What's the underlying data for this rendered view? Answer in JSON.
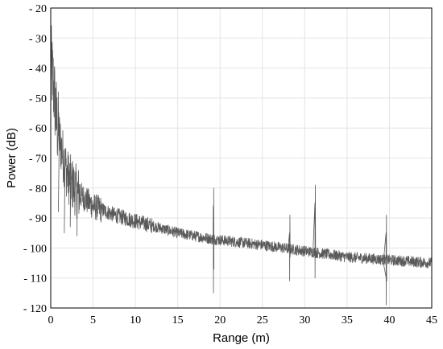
{
  "chart_data": {
    "type": "line",
    "xlabel": "Range (m)",
    "ylabel": "Power (dB)",
    "xlim": [
      0,
      45
    ],
    "ylim": [
      -120,
      -20
    ],
    "y_inverted_top_is": -20,
    "xticks": [
      0,
      5,
      10,
      15,
      20,
      25,
      30,
      35,
      40,
      45
    ],
    "yticks": [
      -20,
      -30,
      -40,
      -50,
      -60,
      -70,
      -80,
      -90,
      -100,
      -110,
      -120
    ],
    "xtick_labels": [
      "0",
      "5",
      "10",
      "15",
      "20",
      "25",
      "30",
      "35",
      "40",
      "45"
    ],
    "ytick_labels": [
      "- 20",
      "- 30",
      "- 40",
      "- 50",
      "- 60",
      "- 70",
      "- 80",
      "- 90",
      "- 100",
      "- 110",
      "- 120"
    ],
    "grid": true,
    "series_color": "#5a5a5a",
    "baseline": [
      {
        "x": 0.0,
        "y": -38
      },
      {
        "x": 0.3,
        "y": -45
      },
      {
        "x": 0.7,
        "y": -58
      },
      {
        "x": 1.2,
        "y": -66
      },
      {
        "x": 2.0,
        "y": -76
      },
      {
        "x": 3.0,
        "y": -81
      },
      {
        "x": 5.0,
        "y": -86
      },
      {
        "x": 7.5,
        "y": -89
      },
      {
        "x": 10.0,
        "y": -91
      },
      {
        "x": 15.0,
        "y": -95
      },
      {
        "x": 19.0,
        "y": -97
      },
      {
        "x": 25.0,
        "y": -99
      },
      {
        "x": 30.0,
        "y": -101
      },
      {
        "x": 35.0,
        "y": -103
      },
      {
        "x": 40.0,
        "y": -104
      },
      {
        "x": 45.0,
        "y": -105
      }
    ],
    "peaks": [
      {
        "x": 19.2,
        "top": -86,
        "bottom": -115
      },
      {
        "x": 28.2,
        "top": -95,
        "bottom": -111
      },
      {
        "x": 31.2,
        "top": -85,
        "bottom": -110
      },
      {
        "x": 39.6,
        "top": -95,
        "bottom": -119
      }
    ]
  }
}
